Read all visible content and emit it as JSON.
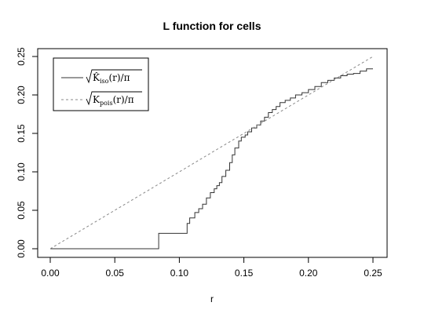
{
  "chart_data": {
    "type": "line",
    "title": "L function for cells",
    "xlabel": "r",
    "ylabel": "",
    "xlim": [
      0,
      0.25
    ],
    "ylim": [
      0,
      0.25
    ],
    "xticks": [
      "0.00",
      "0.05",
      "0.10",
      "0.15",
      "0.20",
      "0.25"
    ],
    "yticks": [
      "0.00",
      "0.05",
      "0.10",
      "0.15",
      "0.20",
      "0.25"
    ],
    "grid": false,
    "legend_position": "top-left",
    "series": [
      {
        "name": "sqrt(K̂iso(r)/π)",
        "legend_main": "K̂",
        "legend_sub": "iso",
        "legend_tail": "(r)/π",
        "color": "#333333",
        "style": "solid",
        "step": true,
        "x": [
          0,
          0.084,
          0.084,
          0.106,
          0.106,
          0.108,
          0.108,
          0.112,
          0.112,
          0.115,
          0.115,
          0.118,
          0.118,
          0.121,
          0.121,
          0.124,
          0.124,
          0.127,
          0.127,
          0.129,
          0.129,
          0.131,
          0.131,
          0.133,
          0.133,
          0.136,
          0.136,
          0.139,
          0.139,
          0.141,
          0.141,
          0.143,
          0.143,
          0.146,
          0.146,
          0.148,
          0.148,
          0.151,
          0.151,
          0.153,
          0.153,
          0.156,
          0.156,
          0.16,
          0.16,
          0.163,
          0.163,
          0.166,
          0.166,
          0.169,
          0.169,
          0.172,
          0.172,
          0.175,
          0.175,
          0.178,
          0.178,
          0.182,
          0.182,
          0.186,
          0.186,
          0.19,
          0.19,
          0.195,
          0.195,
          0.2,
          0.2,
          0.205,
          0.205,
          0.21,
          0.21,
          0.215,
          0.215,
          0.22,
          0.22,
          0.225,
          0.225,
          0.23,
          0.23,
          0.235,
          0.235,
          0.24,
          0.24,
          0.245,
          0.245,
          0.25
        ],
        "y": [
          0,
          0,
          0.02,
          0.02,
          0.033,
          0.033,
          0.04,
          0.04,
          0.047,
          0.047,
          0.052,
          0.052,
          0.058,
          0.058,
          0.066,
          0.066,
          0.073,
          0.073,
          0.078,
          0.078,
          0.082,
          0.082,
          0.086,
          0.086,
          0.094,
          0.094,
          0.102,
          0.102,
          0.112,
          0.112,
          0.122,
          0.122,
          0.131,
          0.131,
          0.14,
          0.14,
          0.145,
          0.145,
          0.148,
          0.148,
          0.152,
          0.152,
          0.157,
          0.157,
          0.161,
          0.161,
          0.166,
          0.166,
          0.171,
          0.171,
          0.177,
          0.177,
          0.181,
          0.181,
          0.185,
          0.185,
          0.19,
          0.19,
          0.193,
          0.193,
          0.196,
          0.196,
          0.2,
          0.2,
          0.203,
          0.203,
          0.207,
          0.207,
          0.211,
          0.211,
          0.216,
          0.216,
          0.219,
          0.219,
          0.222,
          0.222,
          0.225,
          0.225,
          0.227,
          0.227,
          0.228,
          0.228,
          0.231,
          0.231,
          0.234,
          0.234
        ]
      },
      {
        "name": "sqrt(Kpois(r)/π)",
        "legend_main": "K",
        "legend_sub": "pois",
        "legend_tail": "(r)/π",
        "color": "#888888",
        "style": "dashed",
        "step": false,
        "x": [
          0,
          0.25
        ],
        "y": [
          0,
          0.25
        ]
      }
    ]
  }
}
